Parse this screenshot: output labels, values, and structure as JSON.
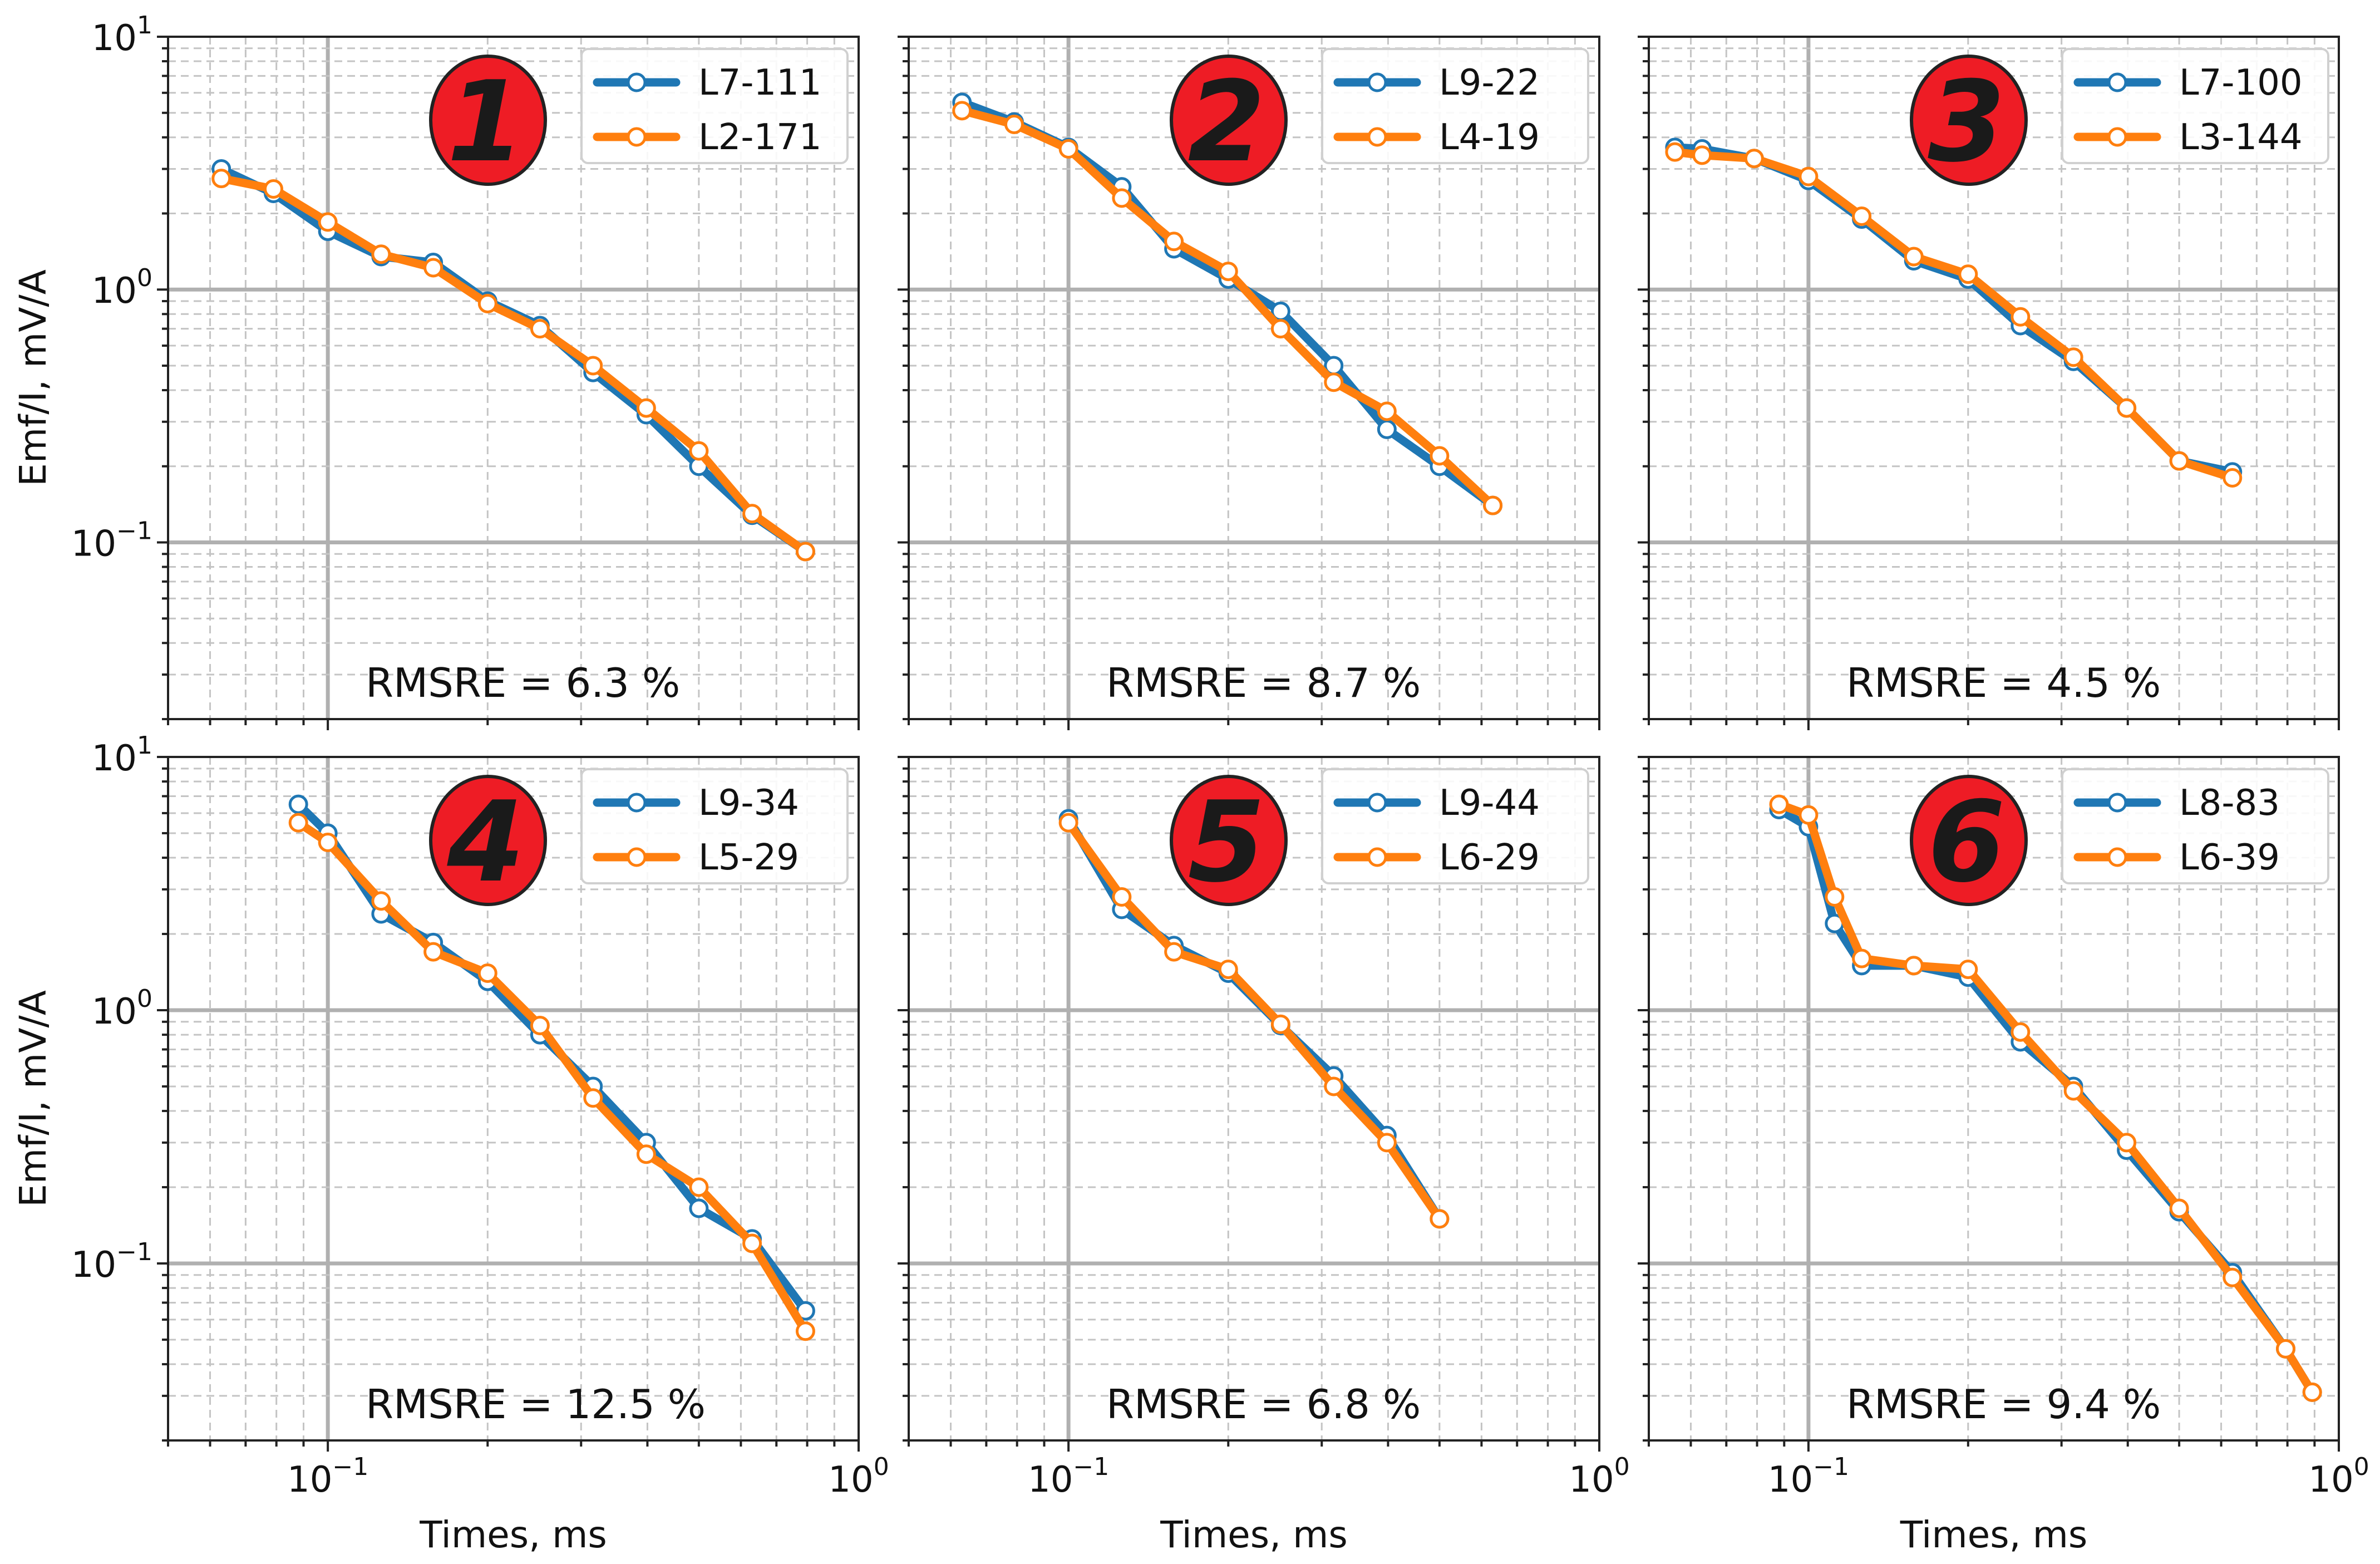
{
  "figure": {
    "shared_axes": {
      "x_title": "Times, ms",
      "y_title": "Emf/I, mV/A",
      "x_ticks": [
        {
          "value": 0.1,
          "base": "10",
          "exp": "−1"
        },
        {
          "value": 1,
          "base": "10",
          "exp": "0"
        }
      ],
      "y_ticks": [
        {
          "value": 10,
          "base": "10",
          "exp": "1"
        },
        {
          "value": 1,
          "base": "10",
          "exp": "0"
        },
        {
          "value": 0.1,
          "base": "10",
          "exp": "−1"
        }
      ]
    },
    "colors": {
      "series_a": "#1f77b4",
      "series_b": "#ff7f0e",
      "badge": "#ee1c25",
      "grid_major": "#b0b0b0",
      "grid_minor": "#c4c4c4"
    }
  },
  "chart_data": [
    {
      "type": "line",
      "number": "1",
      "rmsre": "RMSRE = 6.3 %",
      "xscale": "log",
      "yscale": "log",
      "xlim": [
        0.05,
        1.0
      ],
      "ylim": [
        0.02,
        10
      ],
      "series": [
        {
          "name": "L7-111",
          "x": [
            0.063,
            0.079,
            0.1,
            0.126,
            0.158,
            0.2,
            0.251,
            0.316,
            0.398,
            0.5,
            0.63,
            0.794
          ],
          "y": [
            3.0,
            2.4,
            1.7,
            1.35,
            1.28,
            0.9,
            0.72,
            0.47,
            0.32,
            0.2,
            0.128,
            0.092
          ]
        },
        {
          "name": "L2-171",
          "x": [
            0.063,
            0.079,
            0.1,
            0.126,
            0.158,
            0.2,
            0.251,
            0.316,
            0.398,
            0.5,
            0.63,
            0.794
          ],
          "y": [
            2.75,
            2.5,
            1.85,
            1.38,
            1.22,
            0.88,
            0.7,
            0.5,
            0.34,
            0.23,
            0.13,
            0.092
          ]
        }
      ]
    },
    {
      "type": "line",
      "number": "2",
      "rmsre": "RMSRE = 8.7 %",
      "xscale": "log",
      "yscale": "log",
      "xlim": [
        0.05,
        1.0
      ],
      "ylim": [
        0.02,
        10
      ],
      "series": [
        {
          "name": "L9-22",
          "x": [
            0.063,
            0.079,
            0.1,
            0.126,
            0.158,
            0.2,
            0.251,
            0.316,
            0.398,
            0.5,
            0.63
          ],
          "y": [
            5.5,
            4.6,
            3.65,
            2.55,
            1.45,
            1.1,
            0.82,
            0.5,
            0.28,
            0.2,
            0.14
          ]
        },
        {
          "name": "L4-19",
          "x": [
            0.063,
            0.079,
            0.1,
            0.126,
            0.158,
            0.2,
            0.251,
            0.316,
            0.398,
            0.5,
            0.63
          ],
          "y": [
            5.1,
            4.5,
            3.6,
            2.3,
            1.55,
            1.18,
            0.7,
            0.43,
            0.33,
            0.22,
            0.14
          ]
        }
      ]
    },
    {
      "type": "line",
      "number": "3",
      "rmsre": "RMSRE = 4.5 %",
      "xscale": "log",
      "yscale": "log",
      "xlim": [
        0.05,
        1.0
      ],
      "ylim": [
        0.02,
        10
      ],
      "series": [
        {
          "name": "L7-100",
          "x": [
            0.056,
            0.063,
            0.079,
            0.1,
            0.126,
            0.158,
            0.2,
            0.251,
            0.316,
            0.398,
            0.5,
            0.63
          ],
          "y": [
            3.65,
            3.6,
            3.3,
            2.7,
            1.9,
            1.3,
            1.1,
            0.72,
            0.52,
            0.34,
            0.21,
            0.19
          ]
        },
        {
          "name": "L3-144",
          "x": [
            0.056,
            0.063,
            0.079,
            0.1,
            0.126,
            0.158,
            0.2,
            0.251,
            0.316,
            0.398,
            0.5,
            0.63
          ],
          "y": [
            3.5,
            3.4,
            3.3,
            2.8,
            1.95,
            1.35,
            1.15,
            0.78,
            0.54,
            0.34,
            0.21,
            0.18
          ]
        }
      ]
    },
    {
      "type": "line",
      "number": "4",
      "rmsre": "RMSRE = 12.5 %",
      "xscale": "log",
      "yscale": "log",
      "xlim": [
        0.05,
        1.0
      ],
      "ylim": [
        0.02,
        10
      ],
      "series": [
        {
          "name": "L9-34",
          "x": [
            0.088,
            0.1,
            0.126,
            0.158,
            0.2,
            0.251,
            0.316,
            0.398,
            0.5,
            0.63,
            0.794
          ],
          "y": [
            6.5,
            5.0,
            2.4,
            1.85,
            1.3,
            0.8,
            0.5,
            0.3,
            0.165,
            0.125,
            0.065
          ]
        },
        {
          "name": "L5-29",
          "x": [
            0.088,
            0.1,
            0.126,
            0.158,
            0.2,
            0.251,
            0.316,
            0.398,
            0.5,
            0.63,
            0.794
          ],
          "y": [
            5.5,
            4.6,
            2.7,
            1.7,
            1.4,
            0.87,
            0.45,
            0.27,
            0.2,
            0.12,
            0.054
          ]
        }
      ]
    },
    {
      "type": "line",
      "number": "5",
      "rmsre": "RMSRE = 6.8 %",
      "xscale": "log",
      "yscale": "log",
      "xlim": [
        0.05,
        1.0
      ],
      "ylim": [
        0.02,
        10
      ],
      "series": [
        {
          "name": "L9-44",
          "x": [
            0.1,
            0.126,
            0.158,
            0.2,
            0.251,
            0.316,
            0.398,
            0.5
          ],
          "y": [
            5.7,
            2.5,
            1.8,
            1.4,
            0.87,
            0.55,
            0.32,
            0.15
          ]
        },
        {
          "name": "L6-29",
          "x": [
            0.1,
            0.126,
            0.158,
            0.2,
            0.251,
            0.316,
            0.398,
            0.5
          ],
          "y": [
            5.5,
            2.8,
            1.7,
            1.45,
            0.88,
            0.5,
            0.3,
            0.15
          ]
        }
      ]
    },
    {
      "type": "line",
      "number": "6",
      "rmsre": "RMSRE = 9.4 %",
      "xscale": "log",
      "yscale": "log",
      "xlim": [
        0.05,
        1.0
      ],
      "ylim": [
        0.02,
        10
      ],
      "series": [
        {
          "name": "L8-83",
          "x": [
            0.088,
            0.1,
            0.112,
            0.126,
            0.158,
            0.2,
            0.251,
            0.316,
            0.398,
            0.5,
            0.63,
            0.794,
            0.891
          ],
          "y": [
            6.2,
            5.3,
            2.2,
            1.5,
            1.5,
            1.35,
            0.75,
            0.5,
            0.28,
            0.16,
            0.092,
            0.046,
            0.031
          ]
        },
        {
          "name": "L6-39",
          "x": [
            0.088,
            0.1,
            0.112,
            0.126,
            0.158,
            0.2,
            0.251,
            0.316,
            0.398,
            0.5,
            0.63,
            0.794,
            0.891
          ],
          "y": [
            6.5,
            5.9,
            2.8,
            1.6,
            1.5,
            1.45,
            0.82,
            0.48,
            0.3,
            0.165,
            0.088,
            0.046,
            0.031
          ]
        }
      ]
    }
  ]
}
